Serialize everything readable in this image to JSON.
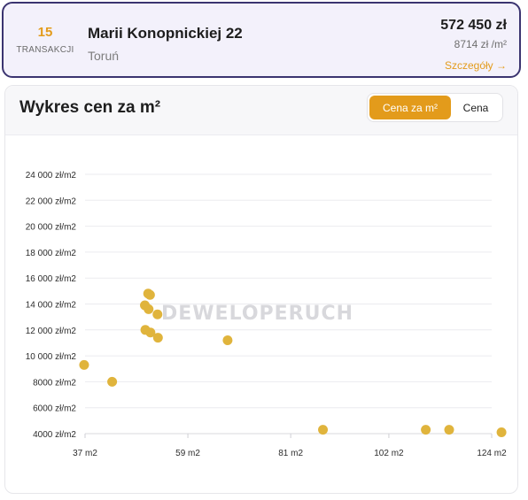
{
  "listing": {
    "transactions_count": "15",
    "transactions_label": "TRANSAKCJI",
    "address": "Marii Konopnickiej 22",
    "city": "Toruń",
    "price": "572 450 zł",
    "price_per_m2": "8714 zł /m²",
    "details_label": "Szczegóły →"
  },
  "chart_section": {
    "title": "Wykres cen za m²",
    "toggle": {
      "price_per_m2_label": "Cena za m²",
      "price_label": "Cena",
      "active": "price_per_m2"
    },
    "watermark": "DEWELOPERUCH"
  },
  "colors": {
    "accent": "#e39b1b",
    "point": "#e0b43c",
    "border_dark": "#3b3470"
  },
  "chart_data": {
    "type": "scatter",
    "title": "",
    "xlabel": "",
    "ylabel": "",
    "xlim": [
      37,
      124
    ],
    "ylim": [
      3000,
      24500
    ],
    "x_ticks": [
      {
        "value": 37,
        "label": "37 m2"
      },
      {
        "value": 59,
        "label": "59 m2"
      },
      {
        "value": 81,
        "label": "81 m2"
      },
      {
        "value": 102,
        "label": "102 m2"
      },
      {
        "value": 124,
        "label": "124 m2"
      }
    ],
    "y_ticks": [
      {
        "value": 4000,
        "label": "4000 zł/m2"
      },
      {
        "value": 6000,
        "label": "6000 zł/m2"
      },
      {
        "value": 8000,
        "label": "8000 zł/m2"
      },
      {
        "value": 10000,
        "label": "10 000 zł/m2"
      },
      {
        "value": 12000,
        "label": "12 000 zł/m2"
      },
      {
        "value": 14000,
        "label": "14 000 zł/m2"
      },
      {
        "value": 16000,
        "label": "16 000 zł/m2"
      },
      {
        "value": 18000,
        "label": "18 000 zł/m2"
      },
      {
        "value": 20000,
        "label": "20 000 zł/m2"
      },
      {
        "value": 22000,
        "label": "22 000 zł/m2"
      },
      {
        "value": 24000,
        "label": "24 000 zł/m2"
      }
    ],
    "grid": true,
    "points": [
      {
        "x": 36.8,
        "y": 9300
      },
      {
        "x": 42.8,
        "y": 8000
      },
      {
        "x": 49.8,
        "y": 13900
      },
      {
        "x": 50.5,
        "y": 14800
      },
      {
        "x": 50.9,
        "y": 14700
      },
      {
        "x": 50.6,
        "y": 13600
      },
      {
        "x": 52.5,
        "y": 13200
      },
      {
        "x": 49.9,
        "y": 12000
      },
      {
        "x": 51.0,
        "y": 11800
      },
      {
        "x": 52.6,
        "y": 11400
      },
      {
        "x": 67.5,
        "y": 11200
      },
      {
        "x": 87.9,
        "y": 4300
      },
      {
        "x": 109.9,
        "y": 4300
      },
      {
        "x": 114.9,
        "y": 4300
      },
      {
        "x": 126.1,
        "y": 4100
      }
    ]
  }
}
